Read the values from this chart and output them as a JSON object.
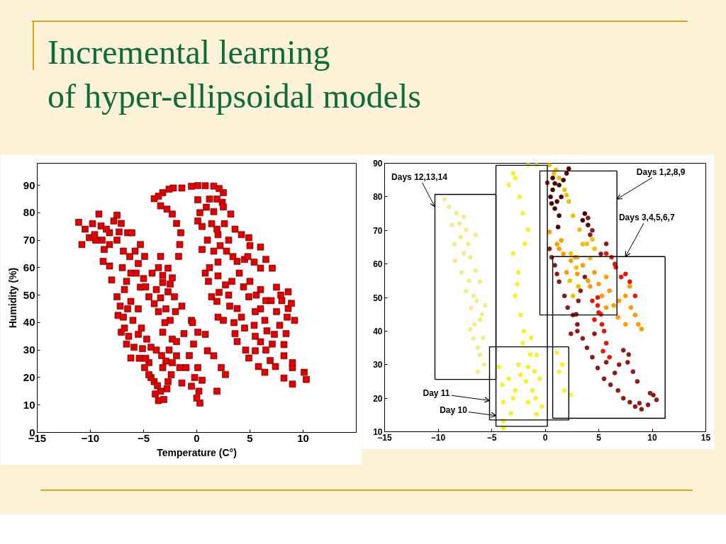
{
  "chart_data": [
    {
      "type": "scatter",
      "title": "Incremental learning\nof hyper-ellipsoidal models",
      "xlabel": "Temperature (C°)",
      "ylabel": "Humidity (%)",
      "xlim": [
        -15,
        15
      ],
      "ylim": [
        0,
        98
      ],
      "xticks": [
        -15,
        -10,
        -5,
        0,
        5,
        10
      ],
      "yticks": [
        0,
        10,
        20,
        30,
        40,
        50,
        60,
        70,
        80,
        90
      ],
      "marker": "square",
      "series": [
        {
          "color": "#e00000",
          "x": [
            -11.1,
            -10.1,
            -10.8,
            -9.2,
            -9.0,
            -8.2,
            -8.7,
            -8.8,
            -8.2,
            -7.5,
            -7.1,
            -6.5,
            -8.2,
            -6.1,
            -5.3,
            -9.5,
            -7.5,
            -8.0,
            -7.5,
            -7.4,
            -7.1,
            -6.6,
            -6.2,
            -6.2,
            -5.5,
            -4.9,
            -5.3,
            -6.2,
            -6.0,
            -5.5,
            -4.5,
            -4.0,
            -3.2,
            -2.7,
            -7.0,
            -6.8,
            -6.5,
            -6.8,
            -5.5,
            -5.0,
            -4.2,
            -3.8,
            -5.1,
            -4.5,
            -4.0,
            -3.6,
            -3.4,
            -4.9,
            -3.2,
            -2.7,
            -2.8,
            -3.8,
            -3.3,
            -2.6,
            -4.3,
            -3.9,
            -3.4,
            -2.7,
            -3.2,
            -2.3,
            -2.1,
            -2.5,
            -3.2,
            -2.3,
            -1.9,
            -1.6,
            -2.9,
            -4.0,
            -3.2,
            -3.4,
            -2.8,
            -2.2,
            -1.4,
            -0.5,
            0.1,
            1.6,
            2.5,
            2.4,
            -2.3,
            -1.9,
            -1.5,
            -1.6,
            -1.7,
            0.1,
            0.1,
            0.5,
            0.8,
            1.4,
            2.5,
            3.8,
            4.9,
            6.4,
            8.2,
            9.0,
            10.3,
            10.1,
            9.0,
            9.0,
            8.2,
            7.1,
            6.9,
            5.5,
            9.2,
            8.6,
            8.6,
            7.5,
            6.0,
            4.9,
            3.2,
            2.5,
            1.6,
            3.8,
            2.7,
            4.9,
            6.4,
            3.8,
            1.9,
            7.3,
            6.0,
            7.1,
            1.0,
            2.0,
            3.0,
            2.0,
            4.0,
            5.0,
            6.0,
            6.5,
            5.5,
            7.5,
            8.5,
            4.5,
            5.5,
            6.5,
            3.0,
            2.0,
            1.2,
            0.5,
            1.2,
            8.0,
            6.0,
            3.5,
            4.5,
            5.0,
            2.2,
            -1.4,
            -0.5,
            -0.3,
            0.1,
            0.2,
            0.3,
            -0.5,
            -1.0,
            -2.3,
            -1.9,
            0.8,
            1.0,
            1.6,
            2.3,
            2.7,
            1.9,
            0.1,
            -0.4,
            -10.5,
            -9.8,
            -9.6,
            -8.9,
            -8.5,
            -7.8,
            -7.3,
            -6.9,
            -6.3,
            -5.8,
            -5.7,
            -6.6,
            -7.2,
            -6.9,
            -6.4,
            -5.9,
            -5.4,
            -4.8,
            -4.3,
            -4.7,
            -5.2,
            -3.6,
            -3.4,
            -4.8,
            -3.6,
            -2.5,
            -3.0,
            -2.0,
            -2.9,
            -3.7,
            -4.5,
            -2.4,
            -3.1,
            0.3,
            0.9,
            1.4,
            1.9,
            2.6,
            3.6,
            4.2,
            1.6,
            2.8,
            3.4,
            4.8,
            5.4,
            6.5,
            1.1,
            2.1,
            3.3,
            4.4,
            5.6,
            7.0,
            7.9,
            8.9,
            3.1,
            4.2,
            5.4,
            6.6,
            7.8,
            8.4,
            8.2,
            6.0,
            4.6,
            5.8,
            7.4,
            3.6,
            2.0,
            -3.6,
            -2.6,
            0.8,
            2.1,
            1.9,
            -1.2,
            -0.7,
            -0.2,
            0.5,
            -1.4,
            0.0
          ],
          "values": [
            76.5,
            70.9,
            68.4,
            79.5,
            75.2,
            72.7,
            66.6,
            62.3,
            60.6,
            79.1,
            76.1,
            72.7,
            68.4,
            72.7,
            68.4,
            70.0,
            70.0,
            55.5,
            49.4,
            42.6,
            36.5,
            32.2,
            27.1,
            58.0,
            61.5,
            64.1,
            52.9,
            47.7,
            40.8,
            35.7,
            49.4,
            46.9,
            54.6,
            51.2,
            60.0,
            52.0,
            45.0,
            38.0,
            45.0,
            56.0,
            58.0,
            52.0,
            30.5,
            25.4,
            18.5,
            11.6,
            15.0,
            23.6,
            23.6,
            18.5,
            15.9,
            30.0,
            28.0,
            30.0,
            20.0,
            14.0,
            64.1,
            59.8,
            57.2,
            56.3,
            49.4,
            40.8,
            36.5,
            34.0,
            27.9,
            23.6,
            45.0,
            85.1,
            87.3,
            82.5,
            81.3,
            89.0,
            89.0,
            89.6,
            89.9,
            89.7,
            87.3,
            83.8,
            79.5,
            76.1,
            72.7,
            68.4,
            64.1,
            84.7,
            77.0,
            66.6,
            58.0,
            49.4,
            40.8,
            33.1,
            27.1,
            21.9,
            19.8,
            17.6,
            19.3,
            21.9,
            23.6,
            25.4,
            27.9,
            32.2,
            26.2,
            29.7,
            40.8,
            45.1,
            51.2,
            52.9,
            67.5,
            70.9,
            79.5,
            82.1,
            80.4,
            62.3,
            53.7,
            49.4,
            40.8,
            45.1,
            47.7,
            35.7,
            59.8,
            59.8,
            70.0,
            72.0,
            70.0,
            62.0,
            58.0,
            55.0,
            52.0,
            48.0,
            44.0,
            44.0,
            42.0,
            38.0,
            35.0,
            30.0,
            50.0,
            57.0,
            60.0,
            75.0,
            85.0,
            48.0,
            45.0,
            40.0,
            63.0,
            68.0,
            68.0,
            46.0,
            40.8,
            32.2,
            23.6,
            15.0,
            10.7,
            16.8,
            23.6,
            25.4,
            33.1,
            35.7,
            29.7,
            27.9,
            23.6,
            21.1,
            15.0,
            36.5,
            40.0,
            74,
            76,
            72,
            70,
            74,
            77,
            73,
            66,
            64,
            66,
            58,
            55,
            46,
            42,
            35,
            31,
            27,
            27,
            31,
            34,
            38,
            44,
            49,
            53,
            60,
            54,
            40,
            44,
            26,
            17,
            21,
            21,
            12,
            80,
            82,
            76,
            74,
            76,
            74,
            72,
            66,
            66,
            64,
            64,
            62,
            63,
            55,
            51,
            55,
            53,
            50,
            48,
            50,
            47,
            46,
            42,
            39,
            37,
            39,
            36,
            32,
            33,
            30,
            24,
            24,
            36,
            42,
            86,
            88.6,
            89.8,
            88.8,
            85,
            36,
            28,
            20,
            19,
            18,
            12.5
          ]
        }
      ]
    },
    {
      "type": "scatter",
      "xlim": [
        -15,
        15
      ],
      "ylim": [
        10,
        90
      ],
      "xticks": [
        -15,
        -10,
        -5,
        0,
        5,
        10,
        15
      ],
      "yticks": [
        10,
        20,
        30,
        40,
        50,
        60,
        70,
        80,
        90
      ],
      "marker": "circle",
      "series": [
        {
          "color": "#f2ec8a",
          "x": [
            -9.4,
            -8.3,
            -7.6,
            -8.7,
            -7.4,
            -6.5,
            -8.5,
            -7.6,
            -8.4,
            -7.8,
            -6.1,
            -7.4,
            -6.7,
            -5.6,
            -6.9,
            -6.1,
            -6.7,
            -6.1,
            -6.3,
            -7.0,
            -5.8,
            -6.5,
            -7.2,
            -9.0,
            -8.0,
            -7.9,
            -7.0,
            -7.1,
            -6.4,
            -5.9,
            -6.6,
            -6.3,
            -5.7
          ],
          "values": [
            79.3,
            75.1,
            74.0,
            71.6,
            70.2,
            68.7,
            65.9,
            63.2,
            61.0,
            57.5,
            54.7,
            51.9,
            50.5,
            47.6,
            46.9,
            43.4,
            37.8,
            32.9,
            27.9,
            40.5,
            38.0,
            58.0,
            66.0,
            77,
            72,
            68,
            62,
            55,
            49,
            45,
            42,
            35,
            30
          ]
        },
        {
          "color": "#f6f030",
          "x": [
            -3.4,
            -2.8,
            -3.0,
            -2.1,
            -1.6,
            -3.0,
            -2.5,
            -2.8,
            -2.3,
            -1.6,
            -0.8,
            -2.1,
            -1.6,
            -1.2,
            -0.8,
            -2.8,
            -3.9,
            -3.4,
            -1.6,
            -0.5,
            -0.8,
            -4.3,
            -3.9,
            -3.9,
            1.3,
            1.8,
            2.4,
            1.1,
            -2.5,
            -1.8,
            -3.0,
            -1.0,
            -2.4,
            -1.9,
            -2.6,
            -2.0,
            -1.4,
            -2.3,
            -0.9,
            -3.2,
            -0.3,
            1.6,
            -4.0,
            -1.3
          ],
          "values": [
            83.5,
            85.6,
            87.0,
            75.1,
            70.2,
            63.1,
            57.5,
            50.5,
            44.8,
            89.5,
            89.5,
            36.4,
            29.3,
            22.3,
            15.3,
            22.3,
            18.8,
            25.8,
            18.8,
            25.8,
            32.9,
            29.3,
            13.2,
            11.0,
            27.9,
            22.3,
            20.9,
            33.6,
            30.0,
            25.0,
            20.0,
            28.0,
            80,
            66,
            54,
            40,
            33,
            27,
            20,
            15.5,
            17.5,
            30,
            24,
            38
          ]
        },
        {
          "color": "#f0c000",
          "x": [
            0.4,
            1.3,
            1.8,
            2.2,
            2.6,
            3.2,
            3.5,
            4.4,
            4.6,
            4.2,
            2.4,
            2.9,
            3.1,
            2.6,
            1.0,
            2.0,
            0.8,
            3.9,
            3.0,
            2.3
          ],
          "values": [
            89.5,
            85.6,
            82.1,
            78.6,
            74.4,
            70.2,
            65.9,
            67.3,
            64.5,
            61.7,
            63.1,
            58.9,
            53.3,
            50.5,
            88.0,
            80.5,
            87,
            66,
            62,
            55
          ]
        },
        {
          "color": "#ff9a00",
          "x": [
            1.3,
            2.4,
            3.5,
            2.0,
            4.6,
            5.7,
            5.3,
            6.4,
            7.5,
            7.9,
            8.4,
            9.0,
            7.5,
            6.8,
            4.2,
            1.1,
            0.4,
            2.8,
            5.0,
            1.7,
            3.0,
            4.0,
            6.0,
            6.9,
            8.0,
            8.7,
            5.7,
            1.5
          ],
          "values": [
            64.5,
            61.0,
            59.6,
            57.5,
            57.5,
            56.1,
            50.5,
            47.6,
            50.5,
            53.3,
            44.8,
            40.6,
            42.0,
            44.1,
            53.3,
            65.9,
            69.5,
            62.0,
            54.0,
            63,
            57,
            55,
            52,
            49,
            47,
            42,
            47,
            67
          ]
        },
        {
          "color": "#e81500",
          "x": [
            5.7,
            6.6,
            4.9,
            5.3,
            5.7,
            6.0,
            4.6,
            4.4,
            7.1,
            7.9,
            8.4,
            5.2,
            6.2,
            5.0,
            5.5,
            5.4,
            6.5,
            7.5,
            4.9
          ],
          "values": [
            63.1,
            59.0,
            47.6,
            42.0,
            36.4,
            32.2,
            43.4,
            49.0,
            56.1,
            54.7,
            50.5,
            45.0,
            62.0,
            45.5,
            40,
            34,
            60,
            57,
            50
          ]
        },
        {
          "color": "#4a0500",
          "x": [
            0.7,
            1.1,
            1.3,
            0.7,
            2.0,
            2.2,
            1.3,
            0.9,
            3.5,
            4.0,
            0.5,
            1.5,
            0.9,
            1.7,
            0.6,
            1.2,
            3.7
          ],
          "values": [
            82.1,
            78.6,
            74.4,
            85.6,
            87.0,
            88.4,
            83.5,
            76.5,
            73.0,
            71.6,
            80.0,
            80.0,
            84,
            85,
            78,
            71,
            75
          ]
        },
        {
          "color": "#8b1a1a",
          "x": [
            0.2,
            0.4,
            0.9,
            1.3,
            1.8,
            2.6,
            3.5,
            4.4,
            5.5,
            6.8,
            7.9,
            9.0,
            10.1,
            10.4,
            5.7,
            7.3,
            7.7,
            8.2,
            4.0,
            4.2,
            5.7,
            3.7,
            4.6,
            3.1,
            2.4,
            6.5,
            8.8,
            3.0,
            0.6,
            1.1,
            2.1,
            3.0,
            3.9,
            4.9,
            6.1,
            7.3,
            8.4,
            9.6,
            9.8,
            6.9,
            7.8,
            8.6,
            4.4,
            5.2,
            3.3,
            2.9
          ],
          "values": [
            84.2,
            64.5,
            59.6,
            54.7,
            50.5,
            44.8,
            37.8,
            32.2,
            25.8,
            22.3,
            18.8,
            16.7,
            20.9,
            19.5,
            30.7,
            34.3,
            30.7,
            27.9,
            73.7,
            68.7,
            66.0,
            56.1,
            39.2,
            49.0,
            39.2,
            27.5,
            18.5,
            42.0,
            62,
            57,
            47,
            40,
            35,
            29,
            24,
            20,
            17.5,
            18,
            21.5,
            30,
            33,
            25,
            70,
            63,
            52,
            45
          ]
        },
        {
          "type": "line",
          "color": "#000000",
          "marker": "none",
          "x": [
            -10.3,
            -10.3,
            -4.6
          ],
          "values": [
            25.6,
            80.7,
            80.7
          ]
        },
        {
          "type": "line",
          "color": "#000000",
          "marker": "none",
          "x": [
            -10.3,
            -4.6,
            -4.6
          ],
          "values": [
            25.6,
            25.6,
            80.7
          ]
        },
        {
          "type": "line",
          "color": "#000000",
          "marker": "none",
          "x": [
            -4.6,
            -4.6,
            0.2
          ],
          "values": [
            11.6,
            89.4,
            89.4
          ]
        },
        {
          "type": "line",
          "color": "#000000",
          "marker": "none",
          "x": [
            -4.6,
            0.2,
            0.2
          ],
          "values": [
            11.6,
            11.6,
            89.4
          ]
        },
        {
          "type": "line",
          "color": "#000000",
          "marker": "none",
          "x": [
            -0.5,
            -0.5,
            6.7
          ],
          "values": [
            44.8,
            87.7,
            87.7
          ]
        },
        {
          "type": "line",
          "color": "#000000",
          "marker": "none",
          "x": [
            -0.5,
            6.7,
            6.7
          ],
          "values": [
            44.8,
            44.8,
            87.7
          ]
        },
        {
          "type": "line",
          "color": "#000000",
          "marker": "none",
          "x": [
            0.7,
            0.7,
            11.2
          ],
          "values": [
            14.0,
            62.2,
            62.2
          ]
        },
        {
          "type": "line",
          "color": "#000000",
          "marker": "none",
          "x": [
            0.7,
            11.2,
            11.2
          ],
          "values": [
            14.0,
            14.0,
            62.2
          ]
        },
        {
          "type": "line",
          "color": "#000000",
          "marker": "none",
          "x": [
            -5.2,
            -5.2,
            2.2
          ],
          "values": [
            13.5,
            35.3,
            35.3
          ]
        },
        {
          "type": "line",
          "color": "#000000",
          "marker": "none",
          "x": [
            -5.2,
            2.2,
            2.2
          ],
          "values": [
            13.5,
            13.5,
            35.3
          ]
        }
      ],
      "annotations": [
        {
          "text": "Days 12,13,14",
          "x": -10.3,
          "y": 77.0
        },
        {
          "text": "Days 1,2,8,9",
          "x": 6.7,
          "y": 79.3
        },
        {
          "text": "Days 3,4,5,6,7",
          "x": 7.5,
          "y": 62.2
        },
        {
          "text": "Day 11",
          "x": -5.2,
          "y": 19.3
        },
        {
          "text": "Day 10",
          "x": -4.6,
          "y": 14.8
        }
      ]
    }
  ]
}
